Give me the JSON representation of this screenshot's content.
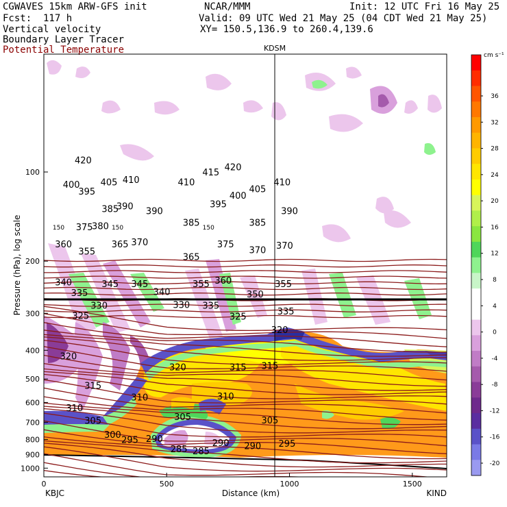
{
  "header": {
    "model": "CGWAVES 15km ARW-GFS init",
    "org": "NCAR/MMM",
    "init": "Init: 12 UTC Fri 16 May 25",
    "fcst": "Fcst:  117 h",
    "valid": "Valid: 09 UTC Wed 21 May 25 (04 CDT Wed 21 May 25)",
    "field1": "Vertical velocity",
    "field2": "Boundary Layer Tracer",
    "field3": "Potential Temperature",
    "xy": "XY= 150.5,136.9 to 260.4,139.6"
  },
  "chart_data": {
    "type": "heatmap",
    "xlabel": "Distance (km)",
    "ylabel": "Pressure (hPa), log scale",
    "xlim": [
      0,
      1640
    ],
    "ylim": [
      1070,
      40
    ],
    "y_scale": "log",
    "x_ticks": [
      0,
      500,
      1000,
      1500
    ],
    "y_ticks": [
      100,
      200,
      300,
      400,
      500,
      600,
      700,
      800,
      900,
      1000
    ],
    "start_label": "KBJC",
    "end_label": "KIND",
    "marker": {
      "name": "KDSM",
      "x": 940
    },
    "colorbar": {
      "unit": "cm s⁻¹",
      "labels": [
        36,
        32,
        28,
        24,
        20,
        16,
        12,
        8,
        4,
        0,
        -4,
        -8,
        -12,
        -16,
        -20
      ],
      "colors": [
        "#ff0000",
        "#ff2d00",
        "#ff5500",
        "#ff7800",
        "#ff9900",
        "#ffb400",
        "#ffcc00",
        "#ffe600",
        "#ffff00",
        "#d8f55a",
        "#b0ef4a",
        "#8ae640",
        "#4fd65a",
        "#8ef28e",
        "#c8f5c8",
        "#ffffff",
        "#ffffff",
        "#ecc6ec",
        "#d9a0dc",
        "#c07cc6",
        "#a55aac",
        "#8a3c98",
        "#6e2a8c",
        "#5a2ea0",
        "#5a52c8",
        "#7a7ae6",
        "#9a9af0"
      ],
      "note": ""
    },
    "theta_labels": [
      {
        "v": 420,
        "x": 160,
        "p": 91
      },
      {
        "v": 400,
        "x": 112,
        "p": 110
      },
      {
        "v": 395,
        "x": 175,
        "p": 116
      },
      {
        "v": 405,
        "x": 265,
        "p": 108
      },
      {
        "v": 410,
        "x": 355,
        "p": 106
      },
      {
        "v": 385,
        "x": 270,
        "p": 133
      },
      {
        "v": 390,
        "x": 330,
        "p": 130
      },
      {
        "v": 390,
        "x": 450,
        "p": 135
      },
      {
        "v": 375,
        "x": 165,
        "p": 153
      },
      {
        "v": 380,
        "x": 230,
        "p": 152
      },
      {
        "v": 410,
        "x": 580,
        "p": 108
      },
      {
        "v": 415,
        "x": 680,
        "p": 100
      },
      {
        "v": 420,
        "x": 770,
        "p": 96
      },
      {
        "v": 395,
        "x": 710,
        "p": 128
      },
      {
        "v": 400,
        "x": 790,
        "p": 120
      },
      {
        "v": 405,
        "x": 870,
        "p": 114
      },
      {
        "v": 410,
        "x": 970,
        "p": 108
      },
      {
        "v": 390,
        "x": 1000,
        "p": 135
      },
      {
        "v": 385,
        "x": 600,
        "p": 148
      },
      {
        "v": 385,
        "x": 870,
        "p": 148
      },
      {
        "v": 360,
        "x": 80,
        "p": 175
      },
      {
        "v": 355,
        "x": 175,
        "p": 185
      },
      {
        "v": 365,
        "x": 310,
        "p": 175
      },
      {
        "v": 370,
        "x": 390,
        "p": 172
      },
      {
        "v": 365,
        "x": 600,
        "p": 193
      },
      {
        "v": 375,
        "x": 740,
        "p": 175
      },
      {
        "v": 370,
        "x": 870,
        "p": 183
      },
      {
        "v": 370,
        "x": 980,
        "p": 177
      },
      {
        "v": 340,
        "x": 80,
        "p": 235
      },
      {
        "v": 335,
        "x": 145,
        "p": 255
      },
      {
        "v": 345,
        "x": 270,
        "p": 238
      },
      {
        "v": 345,
        "x": 390,
        "p": 238
      },
      {
        "v": 340,
        "x": 480,
        "p": 253
      },
      {
        "v": 355,
        "x": 640,
        "p": 238
      },
      {
        "v": 360,
        "x": 730,
        "p": 232
      },
      {
        "v": 350,
        "x": 860,
        "p": 258
      },
      {
        "v": 355,
        "x": 975,
        "p": 238
      },
      {
        "v": 330,
        "x": 225,
        "p": 282
      },
      {
        "v": 325,
        "x": 150,
        "p": 305
      },
      {
        "v": 330,
        "x": 560,
        "p": 280
      },
      {
        "v": 335,
        "x": 680,
        "p": 282
      },
      {
        "v": 325,
        "x": 790,
        "p": 307
      },
      {
        "v": 320,
        "x": 960,
        "p": 340
      },
      {
        "v": 335,
        "x": 985,
        "p": 295
      },
      {
        "v": 320,
        "x": 100,
        "p": 418
      },
      {
        "v": 320,
        "x": 545,
        "p": 455
      },
      {
        "v": 315,
        "x": 790,
        "p": 455
      },
      {
        "v": 315,
        "x": 920,
        "p": 450
      },
      {
        "v": 315,
        "x": 200,
        "p": 525
      },
      {
        "v": 310,
        "x": 390,
        "p": 575
      },
      {
        "v": 310,
        "x": 740,
        "p": 570
      },
      {
        "v": 310,
        "x": 125,
        "p": 625
      },
      {
        "v": 305,
        "x": 200,
        "p": 690
      },
      {
        "v": 305,
        "x": 565,
        "p": 670
      },
      {
        "v": 305,
        "x": 920,
        "p": 688
      },
      {
        "v": 300,
        "x": 280,
        "p": 770
      },
      {
        "v": 295,
        "x": 350,
        "p": 800
      },
      {
        "v": 290,
        "x": 450,
        "p": 795
      },
      {
        "v": 285,
        "x": 550,
        "p": 860
      },
      {
        "v": 285,
        "x": 640,
        "p": 875
      },
      {
        "v": 290,
        "x": 720,
        "p": 820
      },
      {
        "v": 290,
        "x": 850,
        "p": 840
      },
      {
        "v": 295,
        "x": 990,
        "p": 825
      }
    ],
    "pbl_labels": [
      {
        "v": 150,
        "x": 60,
        "p": 154
      },
      {
        "v": 150,
        "x": 300,
        "p": 154
      },
      {
        "v": 150,
        "x": 670,
        "p": 154
      }
    ]
  }
}
